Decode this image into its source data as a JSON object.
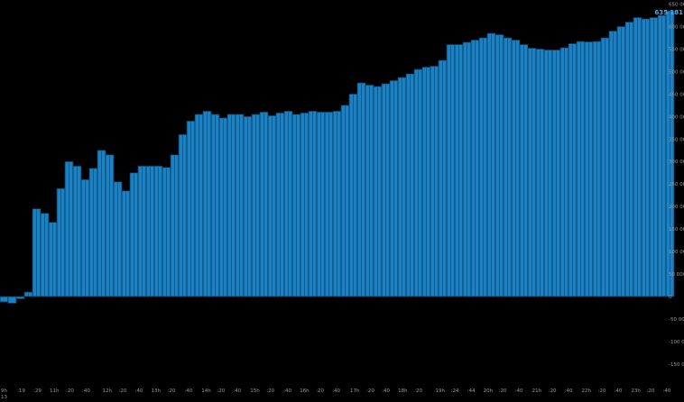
{
  "chart_data": {
    "type": "bar",
    "title": "",
    "xlabel": "",
    "ylabel": "",
    "ylim": [
      -170000,
      660000
    ],
    "y_ticks": [
      "650 000",
      "600 000",
      "550 000",
      "500 000",
      "450 000",
      "400 000",
      "350 000",
      "300 000",
      "250 000",
      "200 000",
      "150 000",
      "100 000",
      "50 000",
      "0",
      "-50 000",
      "-100 000",
      "-150 000"
    ],
    "y_tick_values": [
      650000,
      600000,
      550000,
      500000,
      450000,
      400000,
      350000,
      300000,
      250000,
      200000,
      150000,
      100000,
      50000,
      0,
      -50000,
      -100000,
      -150000
    ],
    "current_value_label": "635 181",
    "colors": {
      "bar": "#1a82c4",
      "bar_edge": "#0b3350",
      "current_value": "#2a8fd4",
      "axis_text": "#9a9a9a",
      "background": "#000000"
    },
    "grid": false,
    "values": [
      -12000,
      -15000,
      -5000,
      10000,
      195000,
      185000,
      165000,
      240000,
      300000,
      290000,
      260000,
      285000,
      325000,
      315000,
      255000,
      235000,
      275000,
      290000,
      290000,
      290000,
      287000,
      315000,
      360000,
      390000,
      405000,
      412000,
      405000,
      397000,
      405000,
      405000,
      400000,
      405000,
      410000,
      402000,
      408000,
      412000,
      405000,
      408000,
      412000,
      410000,
      410000,
      412000,
      425000,
      450000,
      475000,
      470000,
      467000,
      473000,
      480000,
      487000,
      495000,
      505000,
      510000,
      512000,
      525000,
      560000,
      560000,
      565000,
      570000,
      575000,
      585000,
      582000,
      575000,
      570000,
      560000,
      552000,
      550000,
      548000,
      548000,
      553000,
      562000,
      567000,
      566000,
      567000,
      575000,
      590000,
      600000,
      610000,
      620000,
      617000,
      620000,
      625000,
      635000
    ],
    "x_ticks": [
      {
        "label": "9h",
        "sub": "13",
        "at": 0
      },
      {
        "label": ":19",
        "at": 2
      },
      {
        "label": ":29",
        "at": 4
      },
      {
        "label": "11h",
        "at": 6
      },
      {
        "label": ":20",
        "at": 8
      },
      {
        "label": ":40",
        "at": 10
      },
      {
        "label": "12h",
        "at": 12.5
      },
      {
        "label": ":20",
        "at": 14.5
      },
      {
        "label": ":40",
        "at": 16.5
      },
      {
        "label": "13h",
        "at": 18.5
      },
      {
        "label": ":20",
        "at": 20.5
      },
      {
        "label": ":40",
        "at": 22.6
      },
      {
        "label": "14h",
        "at": 24.7
      },
      {
        "label": ":20",
        "at": 26.6
      },
      {
        "label": ":40",
        "at": 28.6
      },
      {
        "label": "15h",
        "at": 30.7
      },
      {
        "label": ":20",
        "at": 32.7
      },
      {
        "label": ":40",
        "at": 34.8
      },
      {
        "label": "16h",
        "at": 36.8
      },
      {
        "label": ":20",
        "at": 38.8
      },
      {
        "label": ":40",
        "at": 40.8
      },
      {
        "label": "17h",
        "at": 43
      },
      {
        "label": ":20",
        "at": 45
      },
      {
        "label": ":40",
        "at": 46.9
      },
      {
        "label": "18h",
        "at": 48.9
      },
      {
        "label": ":20",
        "at": 50.9
      },
      {
        "label": "19h",
        "at": 53.5
      },
      {
        "label": ":24",
        "at": 55.4
      },
      {
        "label": ":44",
        "at": 57.4
      },
      {
        "label": "20h",
        "at": 59.4
      },
      {
        "label": ":20",
        "at": 61.3
      },
      {
        "label": ":40",
        "at": 63.3
      },
      {
        "label": "21h",
        "at": 65.4
      },
      {
        "label": ":20",
        "at": 67.4
      },
      {
        "label": ":40",
        "at": 69.4
      },
      {
        "label": "22h",
        "at": 71.5
      },
      {
        "label": ":20",
        "at": 73.5
      },
      {
        "label": ":40",
        "at": 75.5
      },
      {
        "label": "23h",
        "at": 77.6
      },
      {
        "label": ":20",
        "at": 79.5
      },
      {
        "label": ":40",
        "at": 81.5
      }
    ]
  }
}
